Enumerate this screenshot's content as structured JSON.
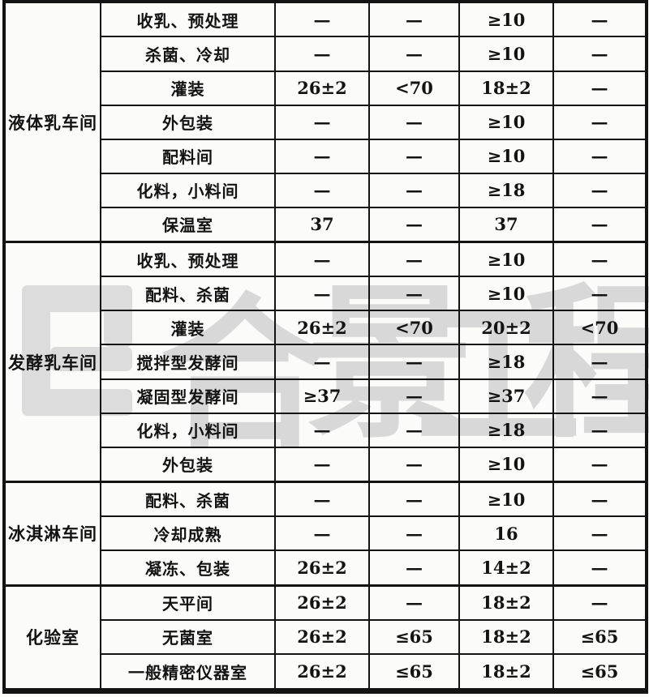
{
  "page": {
    "background": "#fbfbf9",
    "ink_color": "#131313"
  },
  "watermark": {
    "color": "#d8d8d8",
    "chars": [
      "合",
      "景",
      "工",
      "程"
    ]
  },
  "table": {
    "groups": [
      {
        "label": "液体乳车间",
        "rows": [
          {
            "room": "收乳、预处理",
            "values": [
              "—",
              "—",
              "≥10",
              "—"
            ]
          },
          {
            "room": "杀菌、冷却",
            "values": [
              "—",
              "—",
              "≥10",
              "—"
            ]
          },
          {
            "room": "灌装",
            "values": [
              "26±2",
              "<70",
              "18±2",
              "—"
            ]
          },
          {
            "room": "外包装",
            "values": [
              "—",
              "—",
              "≥10",
              "—"
            ]
          },
          {
            "room": "配料间",
            "values": [
              "—",
              "—",
              "≥10",
              "—"
            ]
          },
          {
            "room": "化料，小料间",
            "values": [
              "—",
              "—",
              "≥18",
              "—"
            ]
          },
          {
            "room": "保温室",
            "values": [
              "37",
              "—",
              "37",
              "—"
            ]
          }
        ]
      },
      {
        "label": "发酵乳车间",
        "rows": [
          {
            "room": "收乳、预处理",
            "values": [
              "—",
              "—",
              "≥10",
              "—"
            ]
          },
          {
            "room": "配料、杀菌",
            "values": [
              "—",
              "—",
              "≥10",
              "—"
            ]
          },
          {
            "room": "灌装",
            "values": [
              "26±2",
              "<70",
              "20±2",
              "<70"
            ]
          },
          {
            "room": "搅拌型发酵间",
            "values": [
              "—",
              "—",
              "≥18",
              "—"
            ]
          },
          {
            "room": "凝固型发酵间",
            "values": [
              "≥37",
              "—",
              "≥37",
              "—"
            ]
          },
          {
            "room": "化料，小料间",
            "values": [
              "—",
              "—",
              "≥18",
              "—"
            ]
          },
          {
            "room": "外包装",
            "values": [
              "—",
              "—",
              "≥10",
              "—"
            ]
          }
        ]
      },
      {
        "label": "冰淇淋车间",
        "rows": [
          {
            "room": "配料、杀菌",
            "values": [
              "—",
              "—",
              "≥10",
              "—"
            ]
          },
          {
            "room": "冷却成熟",
            "values": [
              "—",
              "—",
              "16",
              "—"
            ]
          },
          {
            "room": "凝冻、包装",
            "values": [
              "26±2",
              "—",
              "14±2",
              "—"
            ]
          }
        ]
      },
      {
        "label": "化验室",
        "rows": [
          {
            "room": "天平间",
            "values": [
              "26±2",
              "—",
              "18±2",
              "—"
            ]
          },
          {
            "room": "无菌室",
            "values": [
              "26±2",
              "≤65",
              "18±2",
              "≤65"
            ]
          },
          {
            "room": "一般精密仪器室",
            "values": [
              "26±2",
              "≤65",
              "18±2",
              "≤65"
            ]
          }
        ]
      }
    ]
  }
}
